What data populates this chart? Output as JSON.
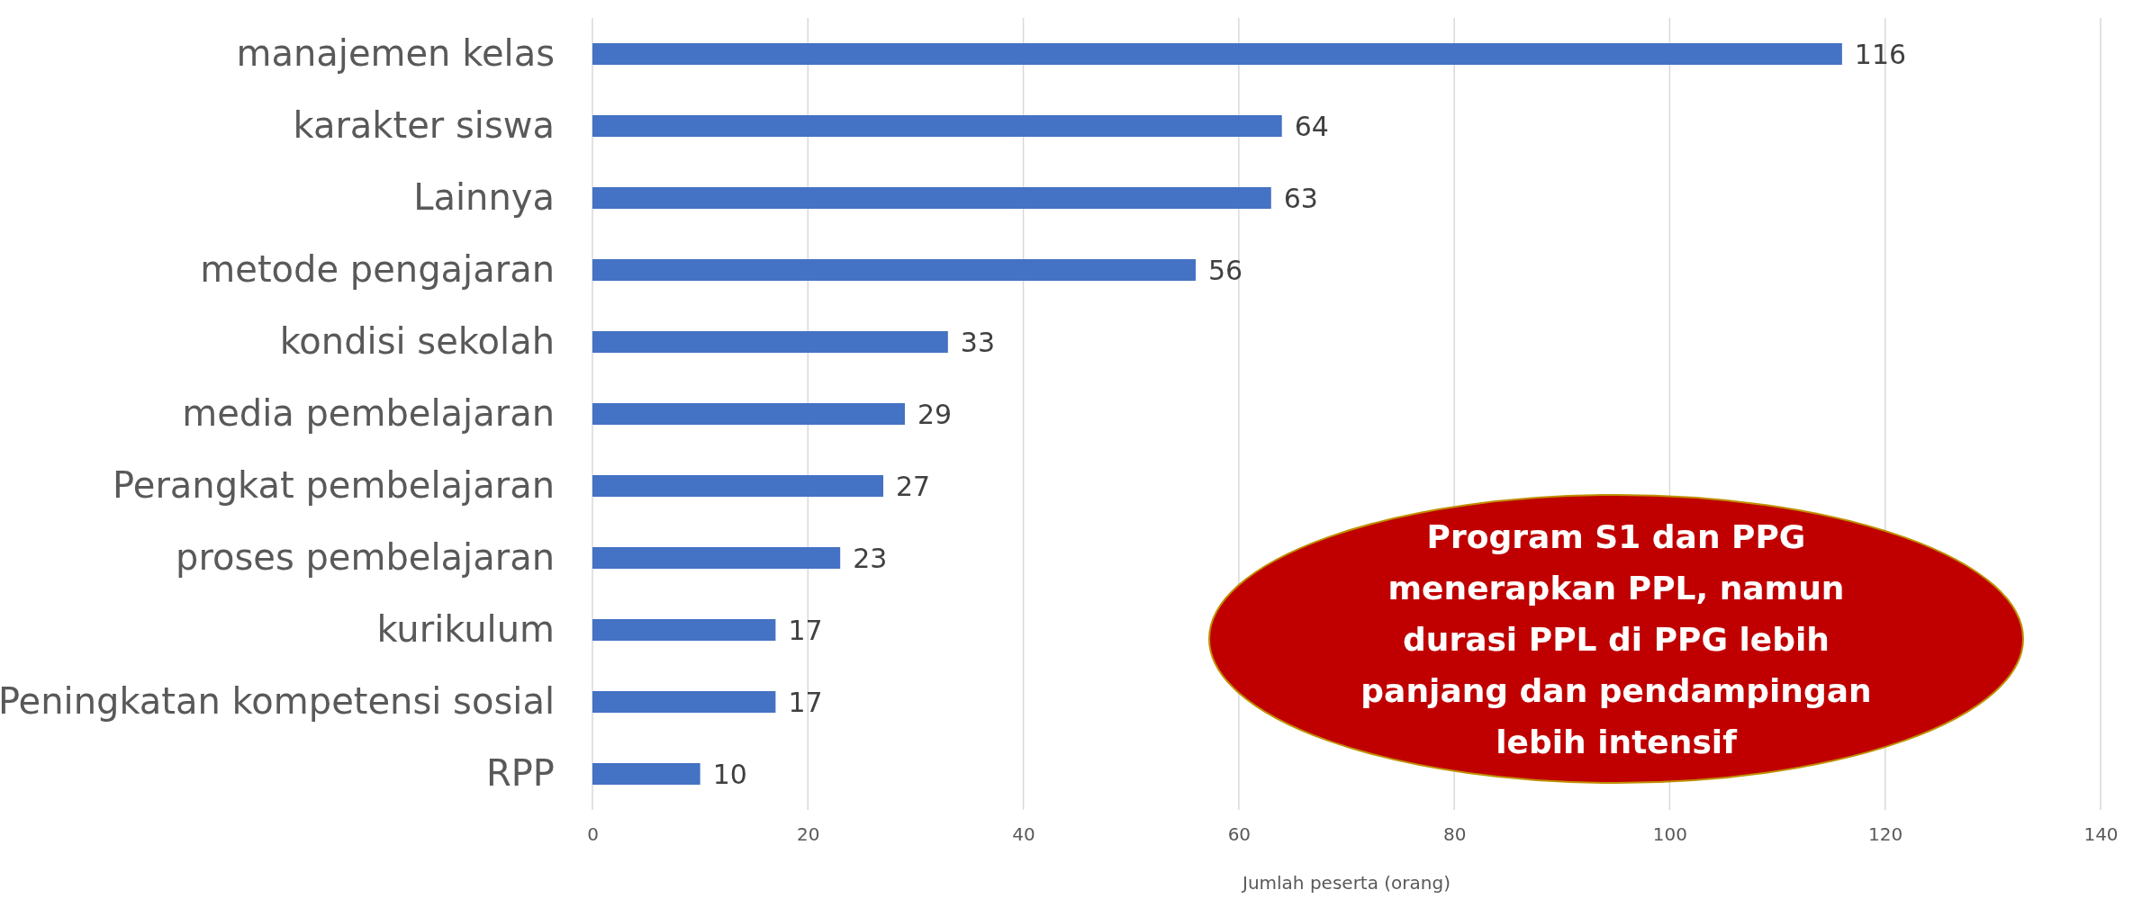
{
  "chart_data": {
    "type": "bar",
    "orientation": "horizontal",
    "xlabel": "Jumlah peserta (orang)",
    "categories": [
      "manajemen kelas",
      "karakter siswa",
      "Lainnya",
      "metode pengajaran",
      "kondisi sekolah",
      "media pembelajaran",
      "Perangkat pembelajaran",
      "proses pembelajaran",
      "kurikulum",
      "Peningkatan kompetensi sosial",
      "RPP"
    ],
    "values": [
      116,
      64,
      63,
      56,
      33,
      29,
      27,
      23,
      17,
      17,
      10
    ],
    "color": "#4472c4",
    "xlim": [
      0,
      140
    ],
    "xticks": [
      0,
      20,
      40,
      60,
      80,
      100,
      120,
      140
    ],
    "grid": "x",
    "data_labels": true,
    "annotations": [
      "Program S1 dan PPG menerapkan PPL, namun durasi PPL di PPG lebih panjang dan pendampingan lebih intensif"
    ]
  }
}
